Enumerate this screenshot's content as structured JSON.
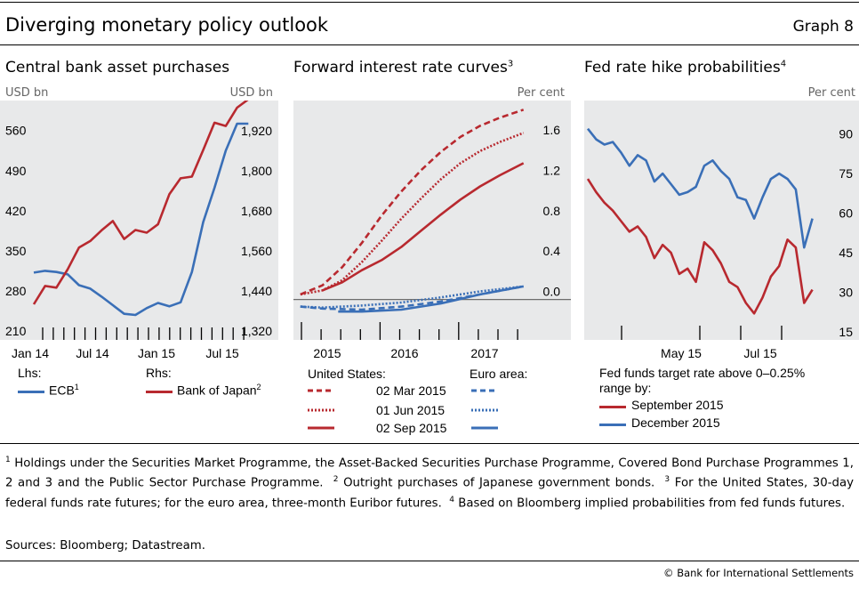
{
  "header": {
    "title": "Diverging monetary policy outlook",
    "graph_number": "Graph 8"
  },
  "panels": [
    {
      "title": "Central bank asset purchases",
      "footnote": ""
    },
    {
      "title": "Forward interest rate curves",
      "footnote": "3"
    },
    {
      "title": "Fed rate hike probabilities",
      "footnote": "4"
    }
  ],
  "colors": {
    "red": "#b8292f",
    "blue": "#3a6fb7",
    "panel_bg": "#e8e9ea",
    "zero_line": "#6d6d6d"
  },
  "legend1": {
    "lhs_label": "Lhs:",
    "rhs_label": "Rhs:",
    "ecb": "ECB",
    "ecb_note": "1",
    "boj": "Bank of Japan",
    "boj_note": "2"
  },
  "legend2": {
    "us_header": "United States:",
    "ea_header": "Euro area:",
    "dates": [
      "02 Mar 2015",
      "01 Jun 2015",
      "02 Sep 2015"
    ]
  },
  "legend3": {
    "header_line1": "Fed funds target rate above 0–0.25%",
    "header_line2": "range by:",
    "sep": "September 2015",
    "dec": "December 2015"
  },
  "footnotes": {
    "n1": "1",
    "t1": "Holdings under the Securities Market Programme, the Asset-Backed Securities Purchase Programme, Covered Bond Purchase Programmes 1, 2 and 3 and the Public Sector Purchase Programme.",
    "n2": "2",
    "t2": "Outright purchases of Japanese government bonds.",
    "n3": "3",
    "t3": "For the United States, 30-day federal funds rate futures; for the euro area, three-month Euribor futures.",
    "n4": "4",
    "t4": "Based on Bloomberg implied probabilities from fed funds futures."
  },
  "sources": "Sources: Bloomberg; Datastream.",
  "copyright": "© Bank for International Settlements",
  "chart_data": [
    {
      "type": "line",
      "title": "Central bank asset purchases",
      "y_left_unit": "USD bn",
      "y_right_unit": "USD bn",
      "y_left_ticks": [
        "210",
        "280",
        "350",
        "420",
        "490",
        "560"
      ],
      "y_right_ticks": [
        "1,320",
        "1,440",
        "1,560",
        "1,680",
        "1,800",
        "1,920"
      ],
      "x_ticks": [
        "Jan 14",
        "Jul 14",
        "Jan 15",
        "Jul 15"
      ],
      "ylim_left": [
        210,
        600
      ],
      "ylim_right": [
        1320,
        1990
      ],
      "xlim": [
        0,
        20
      ],
      "series": [
        {
          "name": "ECB",
          "axis": "left",
          "color": "#3a6fb7",
          "x": [
            0,
            1,
            2,
            3,
            4,
            5,
            6,
            7,
            8,
            9,
            10,
            11,
            12,
            13,
            14,
            15,
            16,
            17,
            18,
            19
          ],
          "y": [
            312,
            315,
            313,
            309,
            290,
            284,
            270,
            255,
            240,
            238,
            250,
            259,
            253,
            260,
            313,
            400,
            460,
            525,
            572,
            572
          ]
        },
        {
          "name": "Bank of Japan",
          "axis": "right",
          "color": "#b8292f",
          "x": [
            0,
            1,
            2,
            3,
            4,
            5,
            6,
            7,
            8,
            9,
            10,
            11,
            12,
            13,
            14,
            15,
            16,
            17,
            18,
            19
          ],
          "y": [
            1400,
            1455,
            1450,
            1505,
            1570,
            1590,
            1622,
            1650,
            1596,
            1623,
            1615,
            1640,
            1730,
            1778,
            1783,
            1863,
            1945,
            1935,
            1990,
            2015
          ]
        }
      ]
    },
    {
      "type": "line",
      "title": "Forward interest rate curves",
      "y_unit": "Per cent",
      "y_ticks": [
        "0.0",
        "0.4",
        "0.8",
        "1.2",
        "1.6"
      ],
      "x_ticks": [
        "2015",
        "2016",
        "2017"
      ],
      "ylim": [
        -0.4,
        1.9
      ],
      "xlim": [
        2014.7,
        2017.7
      ],
      "series": [
        {
          "name": "United States 02 Mar 2015",
          "color": "#b8292f",
          "dash": "dashed",
          "x": [
            2014.72,
            2015.0,
            2015.25,
            2015.5,
            2015.75,
            2016.0,
            2016.25,
            2016.5,
            2016.75,
            2017.0,
            2017.25,
            2017.55
          ],
          "y": [
            0.05,
            0.14,
            0.32,
            0.56,
            0.83,
            1.07,
            1.28,
            1.46,
            1.61,
            1.72,
            1.8,
            1.88
          ]
        },
        {
          "name": "United States 01 Jun 2015",
          "color": "#b8292f",
          "dash": "dotted",
          "x": [
            2014.72,
            2015.0,
            2015.25,
            2015.5,
            2015.75,
            2016.0,
            2016.25,
            2016.5,
            2016.75,
            2017.0,
            2017.25,
            2017.55
          ],
          "y": [
            0.05,
            0.09,
            0.19,
            0.37,
            0.58,
            0.8,
            1.0,
            1.19,
            1.35,
            1.47,
            1.56,
            1.65
          ]
        },
        {
          "name": "United States 02 Sep 2015",
          "color": "#b8292f",
          "dash": "solid",
          "x": [
            2015.0,
            2015.25,
            2015.5,
            2015.75,
            2016.0,
            2016.25,
            2016.5,
            2016.75,
            2017.0,
            2017.25,
            2017.55
          ],
          "y": [
            0.09,
            0.17,
            0.29,
            0.39,
            0.52,
            0.68,
            0.84,
            0.99,
            1.12,
            1.23,
            1.35
          ]
        },
        {
          "name": "Euro area 02 Mar 2015",
          "color": "#3a6fb7",
          "dash": "dashed",
          "x": [
            2014.72,
            2015.0,
            2015.5,
            2016.0,
            2016.5,
            2017.0,
            2017.55
          ],
          "y": [
            -0.07,
            -0.09,
            -0.1,
            -0.07,
            -0.02,
            0.05,
            0.13
          ]
        },
        {
          "name": "Euro area 01 Jun 2015",
          "color": "#3a6fb7",
          "dash": "dotted",
          "x": [
            2014.72,
            2015.0,
            2015.5,
            2016.0,
            2016.5,
            2017.0,
            2017.55
          ],
          "y": [
            -0.07,
            -0.08,
            -0.06,
            -0.03,
            0.02,
            0.08,
            0.13
          ]
        },
        {
          "name": "Euro area 02 Sep 2015",
          "color": "#3a6fb7",
          "dash": "solid",
          "x": [
            2015.2,
            2015.5,
            2016.0,
            2016.5,
            2017.0,
            2017.55
          ],
          "y": [
            -0.12,
            -0.12,
            -0.1,
            -0.04,
            0.05,
            0.13
          ]
        }
      ]
    },
    {
      "type": "line",
      "title": "Fed rate hike probabilities",
      "y_unit": "Per cent",
      "y_ticks": [
        "15",
        "30",
        "45",
        "60",
        "75",
        "90"
      ],
      "x_ticks": [
        "May 15",
        "Jul 15"
      ],
      "ylim": [
        12,
        100
      ],
      "xlim": [
        0,
        28
      ],
      "series": [
        {
          "name": "September 2015",
          "color": "#b8292f",
          "x": [
            0,
            1,
            2,
            3,
            4,
            5,
            6,
            7,
            8,
            9,
            10,
            11,
            12,
            13,
            14,
            15,
            16,
            17,
            18,
            19,
            20,
            21,
            22,
            23,
            24,
            25,
            26,
            27
          ],
          "y": [
            73,
            68,
            64,
            61,
            57,
            53,
            55,
            51,
            43,
            48,
            45,
            37,
            39,
            34,
            49,
            46,
            41,
            34,
            32,
            26,
            22,
            28,
            36,
            40,
            50,
            47,
            26,
            31
          ]
        },
        {
          "name": "December 2015",
          "color": "#3a6fb7",
          "x": [
            0,
            1,
            2,
            3,
            4,
            5,
            6,
            7,
            8,
            9,
            10,
            11,
            12,
            13,
            14,
            15,
            16,
            17,
            18,
            19,
            20,
            21,
            22,
            23,
            24,
            25,
            26,
            27
          ],
          "y": [
            92,
            88,
            86,
            87,
            83,
            78,
            82,
            80,
            72,
            75,
            71,
            67,
            68,
            70,
            78,
            80,
            76,
            73,
            66,
            65,
            58,
            66,
            73,
            75,
            73,
            69,
            47,
            58
          ]
        }
      ]
    }
  ]
}
